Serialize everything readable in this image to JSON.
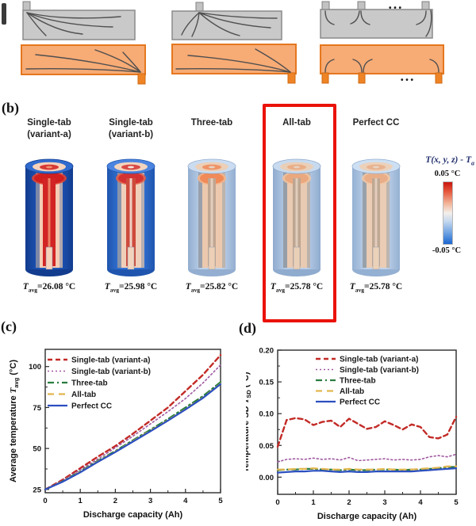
{
  "schematic": {
    "dots": "• • •",
    "gray_fill": "#c9c9c9",
    "gray_stroke": "#8a8a8a",
    "orange_fill": "#f7ab75",
    "orange_stroke": "#e5771e",
    "tab_orange": "#ee8426",
    "line_color": "#4f4f4f"
  },
  "panel_b": {
    "label": "(b)",
    "highlight_index": 3,
    "columns": [
      {
        "title1": "Single-tab",
        "title2": "(variant-a)",
        "tavg_sym": "T",
        "tavg_sub": "avg",
        "tavg_value": "=26.08 °C",
        "colors": {
          "body": "#1e56b8",
          "body_dark": "#123c8e",
          "rim": "#2f6ace",
          "channel": "#f3cdb6",
          "wall": "#7d88a8",
          "cap": "#d01f1f",
          "glow": "#e04434",
          "pole": "#d22424",
          "pole_hi": "#f0926e",
          "notch": "#f6d2bc"
        },
        "pole_w": 16,
        "cap_rx": 19
      },
      {
        "title1": "Single-tab",
        "title2": "(variant-b)",
        "tavg_sym": "T",
        "tavg_sub": "avg",
        "tavg_value": "=25.98 °C",
        "colors": {
          "body": "#3574d6",
          "body_dark": "#1f55ae",
          "rim": "#4a84e0",
          "channel": "#f0cfba",
          "wall": "#8a94a8",
          "cap": "#d33232",
          "glow": "#e2604a",
          "pole": "#cd4a3c",
          "pole_hi": "#f5e6da",
          "notch": "#f2d4be"
        },
        "pole_w": 12,
        "cap_rx": 16
      },
      {
        "title1": "Three-tab",
        "title2": "",
        "tavg_sym": "T",
        "tavg_sub": "avg",
        "tavg_value": "=25.82 °C",
        "colors": {
          "body": "#bed2ea",
          "body_dark": "#93aed0",
          "rim": "#cbdcf0",
          "channel": "#ecc9ae",
          "wall": "#98a0ac",
          "cap": "#f08a58",
          "glow": "#f6b288",
          "pole": "#c0a692",
          "pole_hi": "#e8d4c4",
          "notch": "#eccfb6"
        },
        "pole_w": 10,
        "cap_rx": 15
      },
      {
        "title1": "All-tab",
        "title2": "",
        "tavg_sym": "T",
        "tavg_sub": "avg",
        "tavg_value": "=25.78 °C",
        "colors": {
          "body": "#bacee8",
          "body_dark": "#8fabce",
          "rim": "#c8daee",
          "channel": "#e9cab2",
          "wall": "#959ea8",
          "cap": "#eaa87e",
          "glow": "#f2c4a0",
          "pole": "#bda692",
          "pole_hi": "#e6d2c2",
          "notch": "#eacfb8"
        },
        "pole_w": 10,
        "cap_rx": 15
      },
      {
        "title1": "Perfect CC",
        "title2": "",
        "tavg_sym": "T",
        "tavg_sub": "avg",
        "tavg_value": "=25.78 °C",
        "colors": {
          "body": "#c0d3ea",
          "body_dark": "#94b0d2",
          "rim": "#cddff2",
          "channel": "#ebccb4",
          "wall": "#98a1aa",
          "cap": "#e9ae88",
          "glow": "#f2c8a6",
          "pole": "#bfa894",
          "pole_hi": "#e8d4c4",
          "notch": "#ecd1ba"
        },
        "pole_w": 10,
        "cap_rx": 15
      }
    ],
    "colorbar": {
      "title_main": "T(x, y, z) - T",
      "title_sub": "a",
      "max_label": "0.05 °C",
      "min_label": "-0.05 °C"
    }
  },
  "panel_c_label": "(c)",
  "panel_d_label": "(d)",
  "chart_data": [
    {
      "type": "line",
      "title": "",
      "xlabel": "Discharge capacity (Ah)",
      "ylabel_parts": [
        {
          "t": "Average temperature "
        },
        {
          "t": "T",
          "italic": true
        },
        {
          "t": "avg",
          "sub": true
        },
        {
          "t": " (°C)"
        }
      ],
      "xlim": [
        0,
        5
      ],
      "ylim": [
        23,
        110.5
      ],
      "xticks": [
        0,
        1,
        2,
        3,
        4,
        5
      ],
      "xminor": [
        0.5,
        1.5,
        2.5,
        3.5,
        4.5
      ],
      "yticks": [
        {
          "v": 25,
          "label": "25"
        },
        {
          "v": 50,
          "label": "50"
        },
        {
          "v": 75,
          "label": "75"
        },
        {
          "v": 100,
          "label": "100"
        }
      ],
      "yminor": [
        37.5,
        62.5,
        87.5
      ],
      "grid": false,
      "legend_position": "top-left",
      "x": [
        0,
        0.5,
        1,
        1.5,
        2,
        2.5,
        3,
        3.5,
        4,
        4.5,
        5
      ],
      "series": [
        {
          "name": "Single-tab (variant-a)",
          "color": "#c22a26",
          "dash": "6 4",
          "width": 2.4,
          "values": [
            25,
            31,
            38,
            45,
            51.5,
            59,
            67,
            75,
            85,
            95,
            107
          ]
        },
        {
          "name": "Single-tab (variant-b)",
          "color": "#a05aa0",
          "dash": "2 3",
          "width": 1.6,
          "values": [
            25,
            30.5,
            37,
            43.5,
            50.5,
            57.5,
            65,
            72.5,
            80.5,
            90,
            101
          ]
        },
        {
          "name": "Three-tab",
          "color": "#2a7d3f",
          "dash": "8 4 2 4",
          "width": 2.2,
          "values": [
            25,
            30,
            36,
            42.5,
            48.5,
            55,
            61.5,
            68,
            75,
            82,
            90.5
          ]
        },
        {
          "name": "All-tab",
          "color": "#e2b64f",
          "dash": "8 6",
          "width": 2.2,
          "values": [
            25,
            29.8,
            35.6,
            42,
            48,
            54.4,
            60.8,
            67.2,
            74,
            81,
            89.5
          ]
        },
        {
          "name": "Perfect CC",
          "color": "#2b4fc0",
          "dash": "",
          "width": 2.2,
          "values": [
            25,
            29.7,
            35.4,
            41.8,
            47.8,
            54.2,
            60.5,
            67,
            73.8,
            80.8,
            89.3
          ]
        }
      ]
    },
    {
      "type": "line",
      "title": "",
      "xlabel": "Discharge capacity (Ah)",
      "ylabel_parts": [
        {
          "t": "Temperature SD "
        },
        {
          "t": "T",
          "italic": true
        },
        {
          "t": "SD",
          "sub": true
        },
        {
          "t": " (°C)"
        }
      ],
      "xlim": [
        0,
        5
      ],
      "ylim": [
        -0.027,
        0.2
      ],
      "xticks": [
        0,
        1,
        2,
        3,
        4,
        5
      ],
      "xminor": [
        0.5,
        1.5,
        2.5,
        3.5,
        4.5
      ],
      "yticks": [
        {
          "v": 0,
          "label": "0.00"
        },
        {
          "v": 0.05,
          "label": "0.05"
        },
        {
          "v": 0.1,
          "label": "0.10"
        },
        {
          "v": 0.15,
          "label": "0.15"
        },
        {
          "v": 0.2,
          "label": "0.20"
        }
      ],
      "yminor": [
        0.025,
        0.075,
        0.125,
        0.175
      ],
      "grid": false,
      "legend_position": "top-center",
      "x": [
        0,
        0.25,
        0.5,
        0.75,
        1,
        1.25,
        1.5,
        1.75,
        2,
        2.25,
        2.5,
        2.75,
        3,
        3.25,
        3.5,
        3.75,
        4,
        4.25,
        4.5,
        4.75,
        5
      ],
      "series": [
        {
          "name": "Single-tab (variant-a)",
          "color": "#c22a26",
          "dash": "6 4",
          "width": 2.4,
          "values": [
            0.048,
            0.09,
            0.093,
            0.091,
            0.082,
            0.087,
            0.089,
            0.079,
            0.092,
            0.084,
            0.076,
            0.079,
            0.088,
            0.082,
            0.075,
            0.083,
            0.079,
            0.063,
            0.061,
            0.067,
            0.095
          ]
        },
        {
          "name": "Single-tab (variant-b)",
          "color": "#a05aa0",
          "dash": "2 3",
          "width": 1.6,
          "values": [
            0.024,
            0.028,
            0.029,
            0.028,
            0.03,
            0.028,
            0.029,
            0.027,
            0.031,
            0.026,
            0.027,
            0.028,
            0.029,
            0.027,
            0.028,
            0.027,
            0.028,
            0.032,
            0.034,
            0.032,
            0.036
          ]
        },
        {
          "name": "Three-tab",
          "color": "#2a7d3f",
          "dash": "8 4 2 4",
          "width": 2.2,
          "values": [
            0.011,
            0.012,
            0.012,
            0.013,
            0.013,
            0.012,
            0.012,
            0.011,
            0.012,
            0.011,
            0.011,
            0.012,
            0.012,
            0.012,
            0.011,
            0.012,
            0.012,
            0.013,
            0.014,
            0.016,
            0.016
          ]
        },
        {
          "name": "All-tab",
          "color": "#e2b64f",
          "dash": "8 6",
          "width": 2.2,
          "values": [
            0.012,
            0.012,
            0.013,
            0.013,
            0.014,
            0.013,
            0.012,
            0.012,
            0.013,
            0.012,
            0.012,
            0.012,
            0.013,
            0.012,
            0.012,
            0.012,
            0.013,
            0.014,
            0.015,
            0.017,
            0.017
          ]
        },
        {
          "name": "Perfect CC",
          "color": "#2b4fc0",
          "dash": "",
          "width": 2.2,
          "values": [
            0.007,
            0.008,
            0.009,
            0.009,
            0.01,
            0.01,
            0.009,
            0.008,
            0.009,
            0.008,
            0.008,
            0.009,
            0.009,
            0.009,
            0.009,
            0.009,
            0.01,
            0.011,
            0.012,
            0.013,
            0.014
          ]
        }
      ]
    }
  ]
}
